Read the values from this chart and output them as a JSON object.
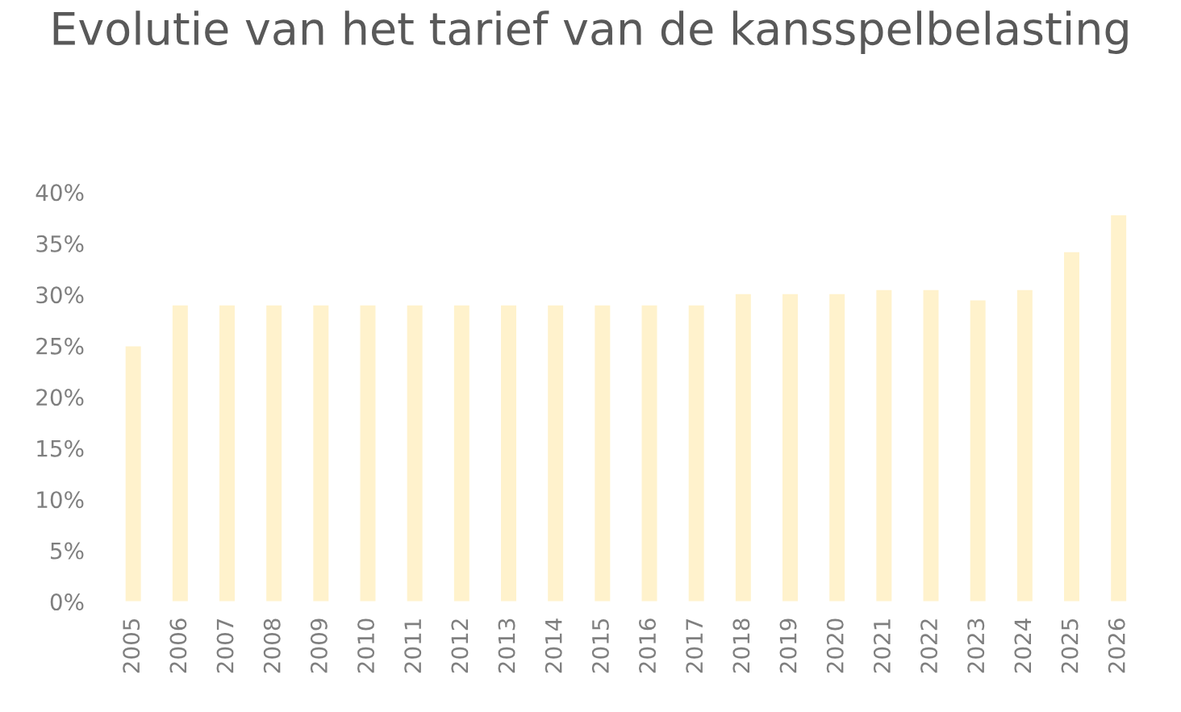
{
  "chart_data": {
    "type": "bar",
    "title": "Evolutie van het tarief van de kansspelbelasting",
    "categories": [
      "2005",
      "2006",
      "2007",
      "2008",
      "2009",
      "2010",
      "2011",
      "2012",
      "2013",
      "2014",
      "2015",
      "2016",
      "2017",
      "2018",
      "2019",
      "2020",
      "2021",
      "2022",
      "2023",
      "2024",
      "2025",
      "2026"
    ],
    "values": [
      25,
      29,
      29,
      29,
      29,
      29,
      29,
      29,
      29,
      29,
      29,
      29,
      29,
      30.1,
      30.1,
      30.1,
      30.5,
      30.5,
      29.5,
      30.5,
      34.2,
      37.8
    ],
    "color": "#fff2cc",
    "ylim": [
      0,
      40
    ],
    "yticks": [
      {
        "value": 0,
        "label": "0%"
      },
      {
        "value": 5,
        "label": "5%"
      },
      {
        "value": 10,
        "label": "10%"
      },
      {
        "value": 15,
        "label": "15%"
      },
      {
        "value": 20,
        "label": "20%"
      },
      {
        "value": 25,
        "label": "25%"
      },
      {
        "value": 30,
        "label": "30%"
      },
      {
        "value": 35,
        "label": "35%"
      },
      {
        "value": 40,
        "label": "40%"
      }
    ],
    "grid": false,
    "legend": false
  }
}
